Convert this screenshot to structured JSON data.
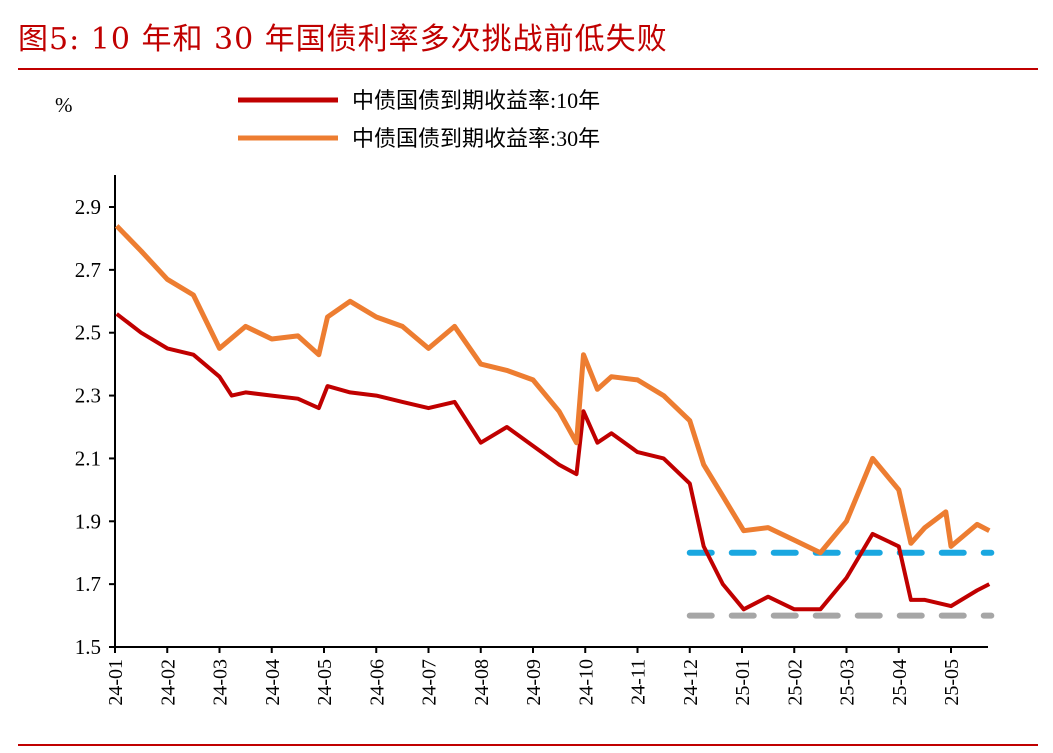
{
  "title": "图5:  10 年和 30 年国债利率多次挑战前低失败",
  "chart_data": {
    "type": "line",
    "ylabel": "%",
    "ylim": [
      1.5,
      2.9
    ],
    "yticks": [
      1.5,
      1.7,
      1.9,
      2.1,
      2.3,
      2.5,
      2.7,
      2.9
    ],
    "xticks": [
      "24-01",
      "24-02",
      "24-03",
      "24-04",
      "24-05",
      "24-06",
      "24-07",
      "24-08",
      "24-09",
      "24-10",
      "24-11",
      "24-12",
      "25-01",
      "25-02",
      "25-03",
      "25-04",
      "25-05"
    ],
    "grid": false,
    "legend": "top",
    "series": [
      {
        "name": "中债国债到期收益率:10年",
        "color": "#c00000",
        "x": [
          "2024-01-02",
          "2024-01-16",
          "2024-02-01",
          "2024-02-16",
          "2024-03-01",
          "2024-03-08",
          "2024-03-16",
          "2024-04-01",
          "2024-04-16",
          "2024-04-28",
          "2024-05-03",
          "2024-05-16",
          "2024-06-01",
          "2024-06-16",
          "2024-07-01",
          "2024-07-16",
          "2024-08-01",
          "2024-08-16",
          "2024-09-01",
          "2024-09-16",
          "2024-09-26",
          "2024-09-30",
          "2024-10-08",
          "2024-10-16",
          "2024-11-01",
          "2024-11-16",
          "2024-12-01",
          "2024-12-09",
          "2024-12-20",
          "2025-01-02",
          "2025-01-16",
          "2025-02-01",
          "2025-02-16",
          "2025-03-01",
          "2025-03-16",
          "2025-04-01",
          "2025-04-08",
          "2025-04-16",
          "2025-05-01",
          "2025-05-16",
          "2025-05-23"
        ],
        "values": [
          2.56,
          2.5,
          2.45,
          2.43,
          2.36,
          2.3,
          2.31,
          2.3,
          2.29,
          2.26,
          2.33,
          2.31,
          2.3,
          2.28,
          2.26,
          2.28,
          2.15,
          2.2,
          2.14,
          2.08,
          2.05,
          2.25,
          2.15,
          2.18,
          2.12,
          2.1,
          2.02,
          1.82,
          1.7,
          1.62,
          1.66,
          1.62,
          1.62,
          1.72,
          1.86,
          1.82,
          1.65,
          1.65,
          1.63,
          1.68,
          1.7
        ]
      },
      {
        "name": "中债国债到期收益率:30年",
        "color": "#ed7d31",
        "x": [
          "2024-01-02",
          "2024-01-16",
          "2024-02-01",
          "2024-02-16",
          "2024-03-01",
          "2024-03-16",
          "2024-04-01",
          "2024-04-16",
          "2024-04-28",
          "2024-05-03",
          "2024-05-16",
          "2024-06-01",
          "2024-06-16",
          "2024-07-01",
          "2024-07-16",
          "2024-08-01",
          "2024-08-16",
          "2024-09-01",
          "2024-09-16",
          "2024-09-26",
          "2024-09-30",
          "2024-10-08",
          "2024-10-16",
          "2024-11-01",
          "2024-11-16",
          "2024-12-01",
          "2024-12-09",
          "2024-12-20",
          "2025-01-02",
          "2025-01-16",
          "2025-02-01",
          "2025-02-16",
          "2025-03-01",
          "2025-03-16",
          "2025-04-01",
          "2025-04-08",
          "2025-04-16",
          "2025-04-28",
          "2025-05-01",
          "2025-05-16",
          "2025-05-23"
        ],
        "values": [
          2.84,
          2.76,
          2.67,
          2.62,
          2.45,
          2.52,
          2.48,
          2.49,
          2.43,
          2.55,
          2.6,
          2.55,
          2.52,
          2.45,
          2.52,
          2.4,
          2.38,
          2.35,
          2.25,
          2.15,
          2.43,
          2.32,
          2.36,
          2.35,
          2.3,
          2.22,
          2.08,
          1.98,
          1.87,
          1.88,
          1.84,
          1.8,
          1.9,
          2.1,
          2.0,
          1.83,
          1.88,
          1.93,
          1.82,
          1.89,
          1.87
        ]
      }
    ],
    "reference_lines": [
      {
        "value": 1.8,
        "from": "2024-12-01",
        "to": "2025-05-23",
        "color": "#1aa7e0",
        "style": "dashed"
      },
      {
        "value": 1.6,
        "from": "2024-12-01",
        "to": "2025-05-23",
        "color": "#a6a6a6",
        "style": "dashed"
      }
    ]
  }
}
